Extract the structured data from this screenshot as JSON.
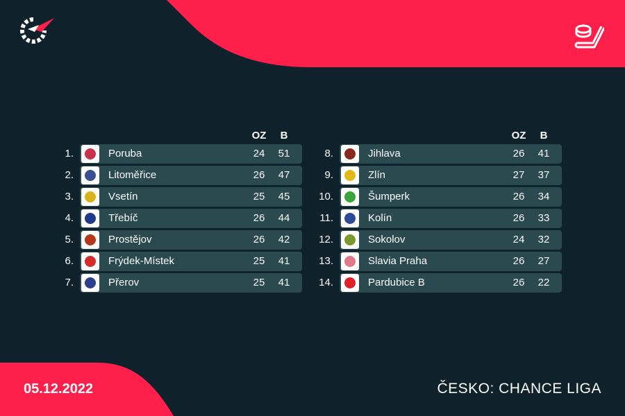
{
  "colors": {
    "background": "#0f222b",
    "accent": "#ff1f4b",
    "row": "#2a4a50"
  },
  "header": {
    "logo_icon": "flashscore-logo-icon",
    "sport_icon": "hockey-puck-stick-icon"
  },
  "table_left": {
    "col_oz": "OZ",
    "col_b": "B",
    "rows": [
      {
        "rank": "1.",
        "team": "Poruba",
        "oz": "24",
        "b": "51",
        "badge_color": "#c8324a"
      },
      {
        "rank": "2.",
        "team": "Litoměřice",
        "oz": "26",
        "b": "47",
        "badge_color": "#3a4f8f"
      },
      {
        "rank": "3.",
        "team": "Vsetín",
        "oz": "25",
        "b": "45",
        "badge_color": "#d9b21c"
      },
      {
        "rank": "4.",
        "team": "Třebíč",
        "oz": "26",
        "b": "44",
        "badge_color": "#1f3a8a"
      },
      {
        "rank": "5.",
        "team": "Prostějov",
        "oz": "26",
        "b": "42",
        "badge_color": "#b5381e"
      },
      {
        "rank": "6.",
        "team": "Frýdek-Místek",
        "oz": "25",
        "b": "41",
        "badge_color": "#d62b2b"
      },
      {
        "rank": "7.",
        "team": "Přerov",
        "oz": "25",
        "b": "41",
        "badge_color": "#2a3f8c"
      }
    ]
  },
  "table_right": {
    "col_oz": "OZ",
    "col_b": "B",
    "rows": [
      {
        "rank": "8.",
        "team": "Jihlava",
        "oz": "26",
        "b": "41",
        "badge_color": "#8a2a1e"
      },
      {
        "rank": "9.",
        "team": "Zlín",
        "oz": "27",
        "b": "37",
        "badge_color": "#e0b81a"
      },
      {
        "rank": "10.",
        "team": "Šumperk",
        "oz": "26",
        "b": "34",
        "badge_color": "#3aa53a"
      },
      {
        "rank": "11.",
        "team": "Kolín",
        "oz": "26",
        "b": "33",
        "badge_color": "#2d4a96"
      },
      {
        "rank": "12.",
        "team": "Sokolov",
        "oz": "24",
        "b": "32",
        "badge_color": "#7a9a2a"
      },
      {
        "rank": "13.",
        "team": "Slavia Praha",
        "oz": "26",
        "b": "27",
        "badge_color": "#e07a8a"
      },
      {
        "rank": "14.",
        "team": "Pardubice B",
        "oz": "26",
        "b": "22",
        "badge_color": "#e0202a"
      }
    ]
  },
  "footer": {
    "date": "05.12.2022",
    "league": "ČESKO: CHANCE LIGA"
  }
}
